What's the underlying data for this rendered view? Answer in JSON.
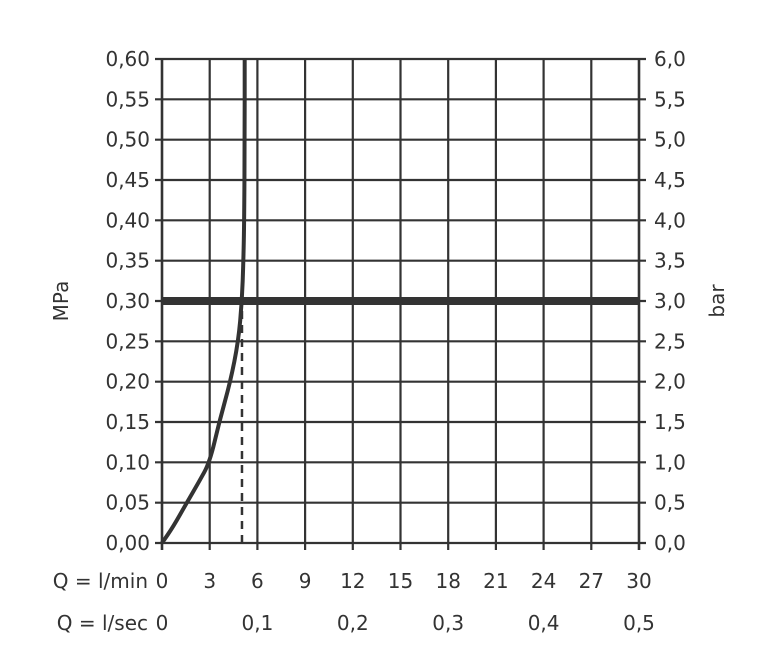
{
  "chart_data": {
    "type": "line",
    "xlabel_rows": [
      {
        "label": "Q = l/min",
        "ticks": [
          "0",
          "3",
          "6",
          "9",
          "12",
          "15",
          "18",
          "21",
          "24",
          "27",
          "30"
        ],
        "values": [
          0,
          3,
          6,
          9,
          12,
          15,
          18,
          21,
          24,
          27,
          30
        ]
      },
      {
        "label": "Q = l/sec",
        "ticks": [
          "0",
          "0,1",
          "0,2",
          "0,3",
          "0,4",
          "0,5"
        ],
        "values": [
          0,
          6,
          12,
          18,
          24,
          30
        ]
      }
    ],
    "ylabel_left": "MPa",
    "ylabel_right": "bar",
    "yticks_left": [
      "0,00",
      "0,05",
      "0,10",
      "0,15",
      "0,20",
      "0,25",
      "0,30",
      "0,35",
      "0,40",
      "0,45",
      "0,50",
      "0,55",
      "0,60"
    ],
    "yticks_right": [
      "0,0",
      "0,5",
      "1,0",
      "1,5",
      "2,0",
      "2,5",
      "3,0",
      "3,5",
      "4,0",
      "4,5",
      "5,0",
      "5,5",
      "6,0"
    ],
    "xlim": [
      0,
      30
    ],
    "ylim": [
      0,
      0.6
    ],
    "grid": true,
    "series": [
      {
        "x": [
          0,
          0.7,
          1.56,
          2.3,
          3.0,
          3.6,
          4.3,
          4.8,
          5.03,
          5.12,
          5.17,
          5.2,
          5.2
        ],
        "y": [
          0,
          0.02,
          0.05,
          0.075,
          0.1,
          0.15,
          0.2,
          0.25,
          0.3,
          0.35,
          0.4,
          0.5,
          0.6
        ],
        "color": "#333333"
      }
    ],
    "reference_lines": [
      {
        "type": "horizontal",
        "y": 0.3,
        "style": "thick",
        "color": "#333333"
      },
      {
        "type": "vertical",
        "x": 5.03,
        "from_y": 0,
        "to_y": 0.3,
        "style": "dashed",
        "color": "#333333"
      }
    ]
  }
}
